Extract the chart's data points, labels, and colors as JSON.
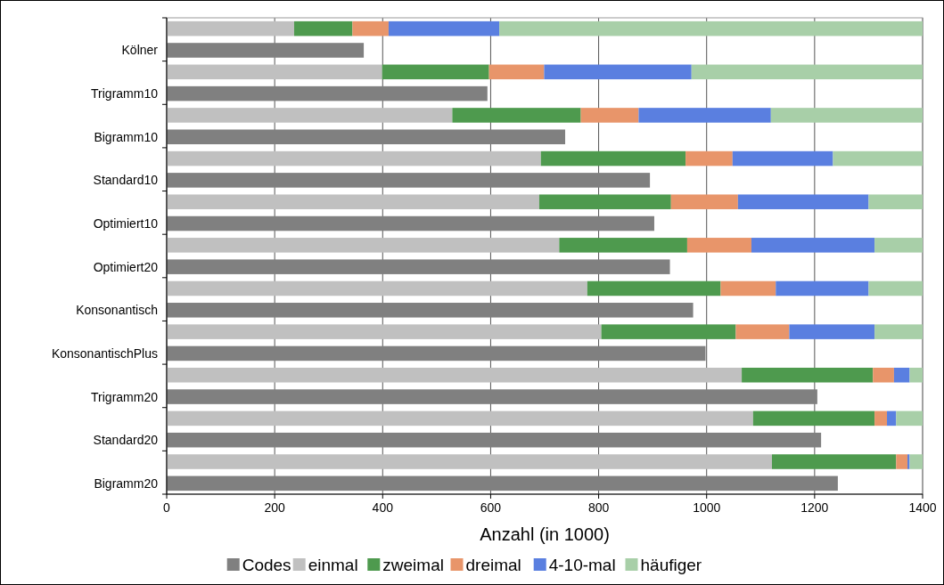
{
  "chart_data": {
    "type": "bar",
    "orientation": "horizontal",
    "stacked": true,
    "xlabel": "Anzahl (in 1000)",
    "categories": [
      null,
      "Kölner",
      null,
      "Trigramm10",
      null,
      "Bigramm10",
      null,
      "Standard10",
      null,
      "Optimiert10",
      null,
      "Optimiert20",
      null,
      "Konsonantisch",
      null,
      "KonsonantischPlus",
      null,
      "Trigramm20",
      null,
      "Standard20",
      null,
      "Bigramm20"
    ],
    "series": [
      {
        "name": "Codes",
        "color": "#808080",
        "values": [
          null,
          365,
          null,
          594,
          null,
          738,
          null,
          895,
          null,
          903,
          null,
          932,
          null,
          975,
          null,
          998,
          null,
          1205,
          null,
          1212,
          null,
          1243
        ]
      },
      {
        "name": "einmal",
        "color": "#c0c0c0",
        "values": [
          236,
          null,
          399,
          null,
          529,
          null,
          693,
          null,
          690,
          null,
          727,
          null,
          779,
          null,
          805,
          null,
          1065,
          null,
          1086,
          null,
          1121,
          null
        ]
      },
      {
        "name": "zweimal",
        "color": "#4e9a4e",
        "values": [
          108,
          null,
          198,
          null,
          238,
          null,
          268,
          null,
          244,
          null,
          237,
          null,
          247,
          null,
          249,
          null,
          243,
          null,
          225,
          null,
          230,
          null
        ]
      },
      {
        "name": "dreimal",
        "color": "#e8956a",
        "values": [
          67,
          null,
          102,
          null,
          107,
          null,
          87,
          null,
          124,
          null,
          119,
          null,
          102,
          null,
          99,
          null,
          39,
          null,
          23,
          null,
          21,
          null
        ]
      },
      {
        "name": "4-10-mal",
        "color": "#5a7fe0",
        "values": [
          205,
          null,
          273,
          null,
          245,
          null,
          186,
          null,
          242,
          null,
          228,
          null,
          172,
          null,
          158,
          null,
          29,
          null,
          17,
          null,
          4,
          null
        ]
      },
      {
        "name": "häufiger",
        "color": "#a8cfa8",
        "values": [
          784,
          null,
          428,
          null,
          281,
          null,
          166,
          null,
          100,
          null,
          89,
          null,
          100,
          null,
          89,
          null,
          24,
          null,
          49,
          null,
          24,
          null
        ]
      }
    ],
    "xlim": [
      0,
      1400
    ],
    "xticks": [
      0,
      200,
      400,
      600,
      800,
      1000,
      1200,
      1400
    ],
    "grid": "x",
    "legend": "bottom"
  }
}
